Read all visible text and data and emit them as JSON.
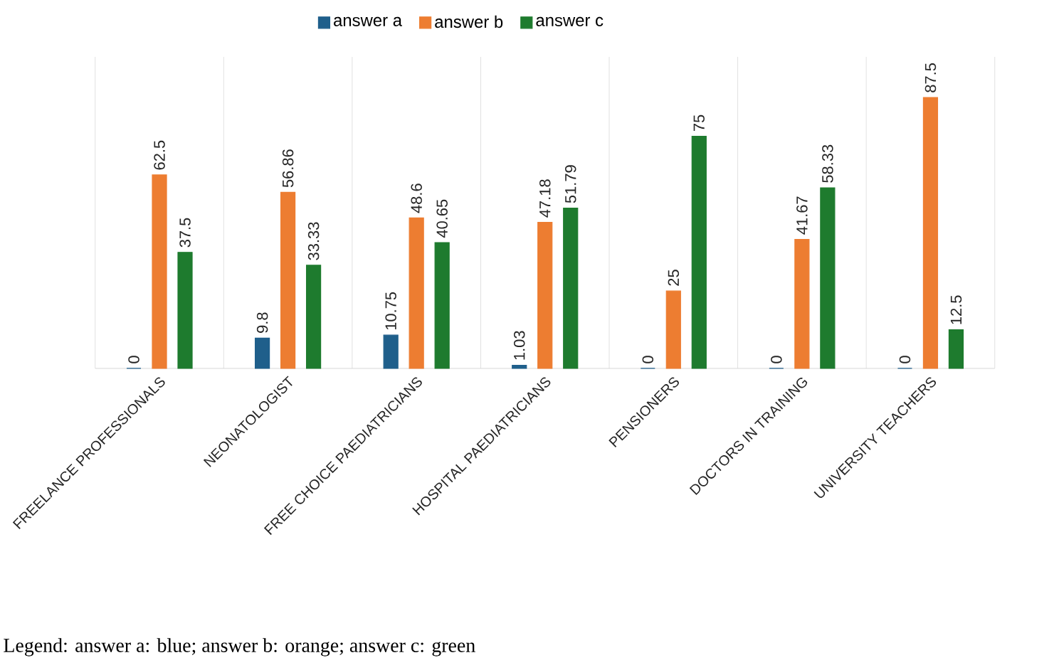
{
  "chart_data": {
    "type": "bar",
    "categories": [
      "FREELANCE PROFESSIONALS",
      "NEONATOLOGIST",
      "FREE CHOICE PAEDIATRICIANS",
      "HOSPITAL PAEDIATRICIANS",
      "PENSIONERS",
      "DOCTORS IN TRAINING",
      "UNIVERSITY TEACHERS"
    ],
    "series": [
      {
        "name": "answer a",
        "color": "#1f5f8b",
        "values": [
          0,
          9.8,
          10.75,
          1.03,
          0,
          0,
          0
        ]
      },
      {
        "name": "answer b",
        "color": "#ed7d31",
        "values": [
          62.5,
          56.86,
          48.6,
          47.18,
          25,
          41.67,
          87.5
        ]
      },
      {
        "name": "answer c",
        "color": "#1e7b2e",
        "values": [
          37.5,
          33.33,
          40.65,
          51.79,
          75,
          58.33,
          12.5
        ]
      }
    ],
    "data_labels": true,
    "grid": "x",
    "legend": "top",
    "annotations": [
      "Legend: answer a: blue; answer b: orange; answer c: green"
    ]
  }
}
